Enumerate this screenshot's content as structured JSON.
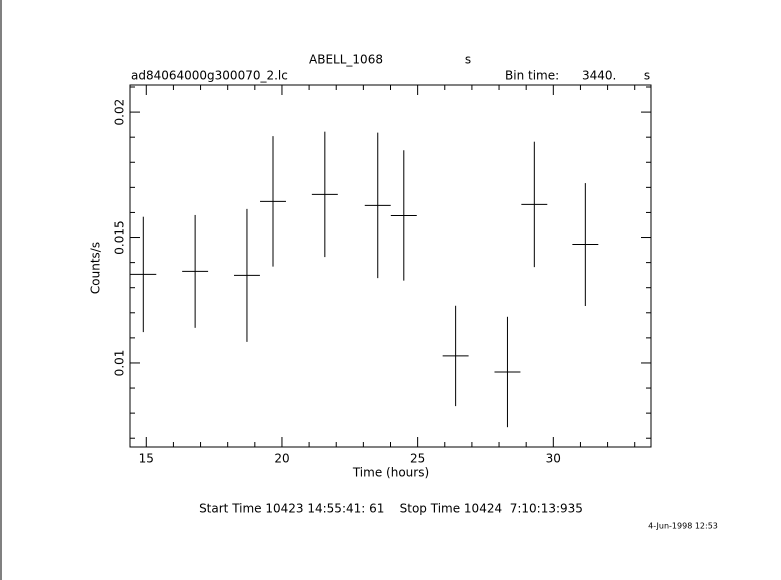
{
  "chart_data": {
    "type": "errorbar",
    "title": "ABELL_1068",
    "title_unit": "s",
    "subtitle": "ad84064000g300070_2.lc",
    "bin_label": "Bin time:",
    "bin_value": "3440.",
    "bin_unit": "s",
    "xlabel": "Time (hours)",
    "ylabel": "Counts/s",
    "footer": "Start Time 10423 14:55:41: 61    Stop Time 10424  7:10:13:935",
    "date": "4-Jun-1998 12:53",
    "xlim": [
      14.4,
      33.6
    ],
    "ylim": [
      0.00665,
      0.02108
    ],
    "xticks": [
      15,
      20,
      25,
      30
    ],
    "yticks": [
      0.01,
      0.015,
      0.02
    ],
    "color": "#000000",
    "series": [
      {
        "x": [
          14.89,
          16.8,
          18.71,
          19.67,
          21.58,
          23.53,
          24.49,
          26.4,
          28.31,
          29.3,
          31.18
        ],
        "xerr": [
          0.478,
          0.478,
          0.478,
          0.478,
          0.478,
          0.478,
          0.478,
          0.478,
          0.478,
          0.478,
          0.478
        ],
        "values": [
          0.01353,
          0.01365,
          0.01349,
          0.01644,
          0.01672,
          0.01628,
          0.01588,
          0.01028,
          0.00964,
          0.01632,
          0.01472
        ],
        "yerr": [
          0.0023,
          0.00225,
          0.00265,
          0.0026,
          0.0025,
          0.0029,
          0.0026,
          0.002,
          0.0022,
          0.0025,
          0.00245
        ]
      }
    ]
  }
}
